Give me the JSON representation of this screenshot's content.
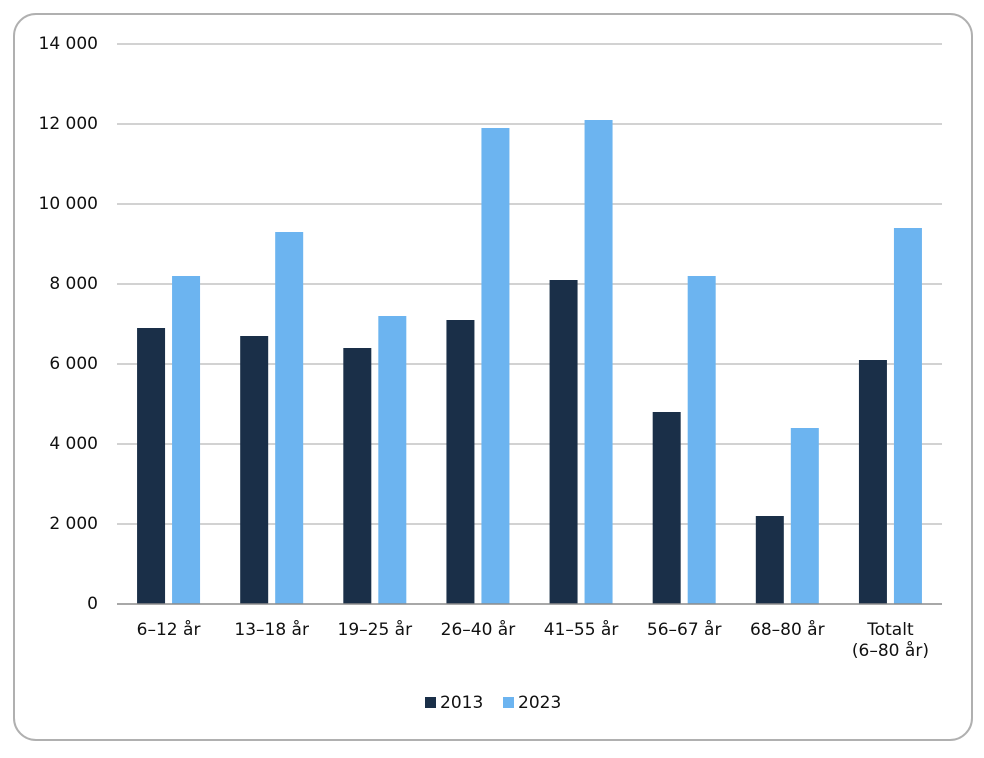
{
  "chart_data": {
    "type": "bar",
    "categories": [
      "6–12 år",
      "13–18 år",
      "19–25 år",
      "26–40 år",
      "41–55 år",
      "56–67 år",
      "68–80 år",
      "Totalt\n(6–80 år)"
    ],
    "series": [
      {
        "name": "2013",
        "color": "#1a2f48",
        "values": [
          6900,
          6700,
          6400,
          7100,
          8100,
          4800,
          2200,
          6100
        ]
      },
      {
        "name": "2023",
        "color": "#6cb4f0",
        "values": [
          8200,
          9300,
          7200,
          11900,
          12100,
          8200,
          4400,
          9400
        ]
      }
    ],
    "ylim": [
      0,
      14000
    ],
    "yticks": [
      0,
      {
        "value": 2000,
        "label": "2 000"
      },
      {
        "value": 4000,
        "label": "4 000"
      },
      {
        "value": 6000,
        "label": "6 000"
      },
      {
        "value": 8000,
        "label": "8 000"
      },
      {
        "value": 10000,
        "label": "10 000"
      },
      {
        "value": 12000,
        "label": "12 000"
      },
      {
        "value": 14000,
        "label": "14 000"
      }
    ],
    "grid": true,
    "legend": "bottom"
  }
}
